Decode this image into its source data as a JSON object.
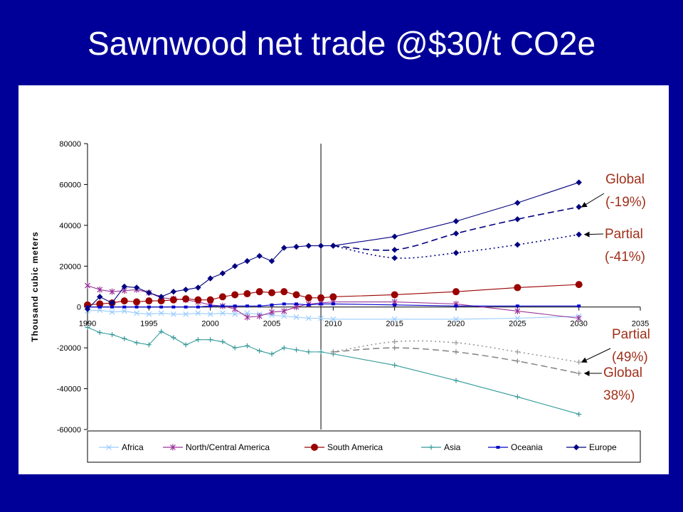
{
  "slide": {
    "title": "Sawnwood net trade @$30/t CO2e"
  },
  "chart_data": {
    "type": "line",
    "title": "",
    "ylabel": "Thousand cubic meters",
    "xlabel": "",
    "xlim": [
      1990,
      2035
    ],
    "ylim": [
      -60000,
      80000
    ],
    "x_ticks": [
      1990,
      1995,
      2000,
      2005,
      2010,
      2015,
      2020,
      2025,
      2030,
      2035
    ],
    "y_ticks": [
      80000,
      60000,
      40000,
      20000,
      0,
      -20000,
      -40000,
      -60000
    ],
    "vertical_reference_line_x": 2009,
    "legend_position": "bottom",
    "series": [
      {
        "name": "Africa",
        "color": "#99ccff",
        "marker": "x",
        "style": "solid",
        "points": [
          [
            1990,
            -2000
          ],
          [
            1991,
            -1500
          ],
          [
            1992,
            -2500
          ],
          [
            1993,
            -2000
          ],
          [
            1994,
            -3000
          ],
          [
            1995,
            -3500
          ],
          [
            1996,
            -3000
          ],
          [
            1997,
            -3500
          ],
          [
            1998,
            -3500
          ],
          [
            1999,
            -3000
          ],
          [
            2000,
            -3500
          ],
          [
            2001,
            -3000
          ],
          [
            2002,
            -3500
          ],
          [
            2003,
            -3000
          ],
          [
            2004,
            -3500
          ],
          [
            2005,
            -4000
          ],
          [
            2006,
            -4500
          ],
          [
            2007,
            -5000
          ],
          [
            2008,
            -5500
          ],
          [
            2009,
            -5500
          ],
          [
            2010,
            -6000
          ],
          [
            2015,
            -6000
          ],
          [
            2020,
            -6000
          ],
          [
            2025,
            -5500
          ],
          [
            2030,
            -4500
          ]
        ]
      },
      {
        "name": "North/Central America",
        "color": "#993399",
        "marker": "star",
        "style": "solid",
        "points": [
          [
            1990,
            10500
          ],
          [
            1991,
            8500
          ],
          [
            1992,
            7500
          ],
          [
            1993,
            8000
          ],
          [
            1994,
            8500
          ],
          [
            1995,
            7000
          ],
          [
            1996,
            4500
          ],
          [
            1997,
            4000
          ],
          [
            1998,
            3500
          ],
          [
            1999,
            2500
          ],
          [
            2000,
            1000
          ],
          [
            2001,
            500
          ],
          [
            2002,
            -1000
          ],
          [
            2003,
            -5000
          ],
          [
            2004,
            -4500
          ],
          [
            2005,
            -2500
          ],
          [
            2006,
            -2000
          ],
          [
            2007,
            0
          ],
          [
            2008,
            1500
          ],
          [
            2009,
            2000
          ],
          [
            2010,
            2500
          ],
          [
            2015,
            2500
          ],
          [
            2020,
            1500
          ],
          [
            2025,
            -2000
          ],
          [
            2030,
            -5500
          ]
        ]
      },
      {
        "name": "South America",
        "color": "#990000",
        "marker": "circle",
        "style": "solid",
        "points": [
          [
            1990,
            1000
          ],
          [
            1991,
            1500
          ],
          [
            1992,
            2000
          ],
          [
            1993,
            3000
          ],
          [
            1994,
            2500
          ],
          [
            1995,
            3000
          ],
          [
            1996,
            3000
          ],
          [
            1997,
            3500
          ],
          [
            1998,
            4000
          ],
          [
            1999,
            3500
          ],
          [
            2000,
            3500
          ],
          [
            2001,
            5000
          ],
          [
            2002,
            6000
          ],
          [
            2003,
            6500
          ],
          [
            2004,
            7500
          ],
          [
            2005,
            7000
          ],
          [
            2006,
            7500
          ],
          [
            2007,
            6000
          ],
          [
            2008,
            4500
          ],
          [
            2009,
            4500
          ],
          [
            2010,
            5000
          ],
          [
            2015,
            6000
          ],
          [
            2020,
            7500
          ],
          [
            2025,
            9500
          ],
          [
            2030,
            11000
          ]
        ]
      },
      {
        "name": "Asia",
        "color": "#339999",
        "marker": "plus",
        "style": "solid",
        "points": [
          [
            1990,
            -10000
          ],
          [
            1991,
            -12500
          ],
          [
            1992,
            -13500
          ],
          [
            1993,
            -15500
          ],
          [
            1994,
            -17500
          ],
          [
            1995,
            -18500
          ],
          [
            1996,
            -12000
          ],
          [
            1997,
            -15000
          ],
          [
            1998,
            -18500
          ],
          [
            1999,
            -16000
          ],
          [
            2000,
            -16000
          ],
          [
            2001,
            -17000
          ],
          [
            2002,
            -20000
          ],
          [
            2003,
            -19000
          ],
          [
            2004,
            -21500
          ],
          [
            2005,
            -23000
          ],
          [
            2006,
            -20000
          ],
          [
            2007,
            -21000
          ],
          [
            2008,
            -22000
          ],
          [
            2009,
            -22000
          ],
          [
            2010,
            -23000
          ],
          [
            2015,
            -28500
          ],
          [
            2020,
            -36000
          ],
          [
            2025,
            -44000
          ],
          [
            2030,
            -52500
          ]
        ]
      },
      {
        "name": "Oceania",
        "color": "#0000cc",
        "marker": "square",
        "style": "solid",
        "points": [
          [
            1990,
            0
          ],
          [
            1991,
            0
          ],
          [
            1992,
            0
          ],
          [
            1993,
            0
          ],
          [
            1994,
            0
          ],
          [
            1995,
            0
          ],
          [
            1996,
            0
          ],
          [
            1997,
            0
          ],
          [
            1998,
            0
          ],
          [
            1999,
            0
          ],
          [
            2000,
            500
          ],
          [
            2001,
            500
          ],
          [
            2002,
            500
          ],
          [
            2003,
            500
          ],
          [
            2004,
            500
          ],
          [
            2005,
            1000
          ],
          [
            2006,
            1500
          ],
          [
            2007,
            1500
          ],
          [
            2008,
            1000
          ],
          [
            2009,
            1500
          ],
          [
            2010,
            1500
          ],
          [
            2015,
            1000
          ],
          [
            2020,
            500
          ],
          [
            2025,
            500
          ],
          [
            2030,
            500
          ]
        ]
      },
      {
        "name": "Europe",
        "color": "#000080",
        "marker": "diamond",
        "style": "solid",
        "points": [
          [
            1990,
            -1000
          ],
          [
            1991,
            5000
          ],
          [
            1992,
            2000
          ],
          [
            1993,
            10000
          ],
          [
            1994,
            9500
          ],
          [
            1995,
            7000
          ],
          [
            1996,
            5000
          ],
          [
            1997,
            7500
          ],
          [
            1998,
            8500
          ],
          [
            1999,
            9500
          ],
          [
            2000,
            14000
          ],
          [
            2001,
            16500
          ],
          [
            2002,
            20000
          ],
          [
            2003,
            22500
          ],
          [
            2004,
            25000
          ],
          [
            2005,
            22500
          ],
          [
            2006,
            29000
          ],
          [
            2007,
            29500
          ],
          [
            2008,
            30000
          ],
          [
            2009,
            30000
          ],
          [
            2010,
            30000
          ],
          [
            2015,
            34500
          ],
          [
            2020,
            42000
          ],
          [
            2025,
            51000
          ],
          [
            2030,
            61000
          ]
        ]
      }
    ],
    "scenario_series": [
      {
        "color": "#000080",
        "marker": "diamond",
        "style": "dashed",
        "points": [
          [
            2010,
            30000
          ],
          [
            2015,
            28000
          ],
          [
            2020,
            36000
          ],
          [
            2025,
            43000
          ],
          [
            2030,
            49000
          ]
        ]
      },
      {
        "color": "#000080",
        "marker": "diamond",
        "style": "dotted",
        "points": [
          [
            2010,
            30000
          ],
          [
            2015,
            24000
          ],
          [
            2020,
            26500
          ],
          [
            2025,
            30500
          ],
          [
            2030,
            35500
          ]
        ]
      },
      {
        "color": "#999999",
        "marker": "plus",
        "style": "dotted",
        "points": [
          [
            2010,
            -22000
          ],
          [
            2015,
            -17000
          ],
          [
            2020,
            -17500
          ],
          [
            2025,
            -22000
          ],
          [
            2030,
            -27000
          ]
        ]
      },
      {
        "color": "#888888",
        "marker": "plus",
        "style": "dashed",
        "points": [
          [
            2010,
            -22000
          ],
          [
            2015,
            -20000
          ],
          [
            2020,
            -22000
          ],
          [
            2025,
            -26500
          ],
          [
            2030,
            -32500
          ]
        ]
      }
    ],
    "annotations": [
      {
        "lines": [
          "Global",
          "(-19%)"
        ],
        "target": [
          2030,
          49000
        ]
      },
      {
        "lines": [
          "Partial",
          "(-41%)"
        ],
        "target": [
          2030,
          35500
        ]
      },
      {
        "lines": [
          "Partial",
          "(49%)"
        ],
        "target": [
          2030,
          -27000
        ]
      },
      {
        "lines": [
          "Global",
          "38%)"
        ],
        "target": [
          2030,
          -32500
        ]
      }
    ]
  }
}
